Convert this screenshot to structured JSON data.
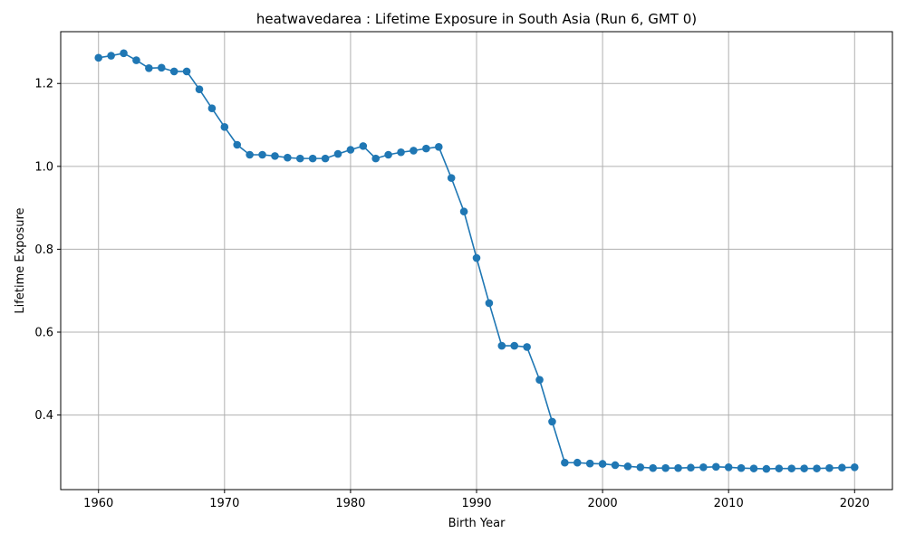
{
  "chart_data": {
    "type": "line",
    "title": "heatwavedarea : Lifetime Exposure in South Asia (Run 6, GMT 0)",
    "xlabel": "Birth Year",
    "ylabel": "Lifetime Exposure",
    "xlim": [
      1957,
      2023
    ],
    "ylim": [
      0.22,
      1.325
    ],
    "xticks": [
      1960,
      1970,
      1980,
      1990,
      2000,
      2010,
      2020
    ],
    "yticks": [
      0.4,
      0.6,
      0.8,
      1.0,
      1.2
    ],
    "grid": true,
    "color": "#1f77b4",
    "marker": "circle",
    "x": [
      1960,
      1961,
      1962,
      1963,
      1964,
      1965,
      1966,
      1967,
      1968,
      1969,
      1970,
      1971,
      1972,
      1973,
      1974,
      1975,
      1976,
      1977,
      1978,
      1979,
      1980,
      1981,
      1982,
      1983,
      1984,
      1985,
      1986,
      1987,
      1988,
      1989,
      1990,
      1991,
      1992,
      1993,
      1994,
      1995,
      1996,
      1997,
      1998,
      1999,
      2000,
      2001,
      2002,
      2003,
      2004,
      2005,
      2006,
      2007,
      2008,
      2009,
      2010,
      2011,
      2012,
      2013,
      2014,
      2015,
      2016,
      2017,
      2018,
      2019,
      2020
    ],
    "y": [
      1.262,
      1.267,
      1.273,
      1.256,
      1.237,
      1.238,
      1.229,
      1.229,
      1.186,
      1.14,
      1.095,
      1.052,
      1.028,
      1.028,
      1.025,
      1.021,
      1.019,
      1.019,
      1.019,
      1.03,
      1.04,
      1.049,
      1.019,
      1.028,
      1.034,
      1.038,
      1.043,
      1.047,
      0.972,
      0.891,
      0.779,
      0.67,
      0.567,
      0.567,
      0.564,
      0.485,
      0.384,
      0.285,
      0.285,
      0.283,
      0.282,
      0.279,
      0.276,
      0.274,
      0.272,
      0.272,
      0.272,
      0.273,
      0.274,
      0.275,
      0.274,
      0.272,
      0.271,
      0.27,
      0.271,
      0.271,
      0.271,
      0.271,
      0.272,
      0.273,
      0.274
    ]
  }
}
